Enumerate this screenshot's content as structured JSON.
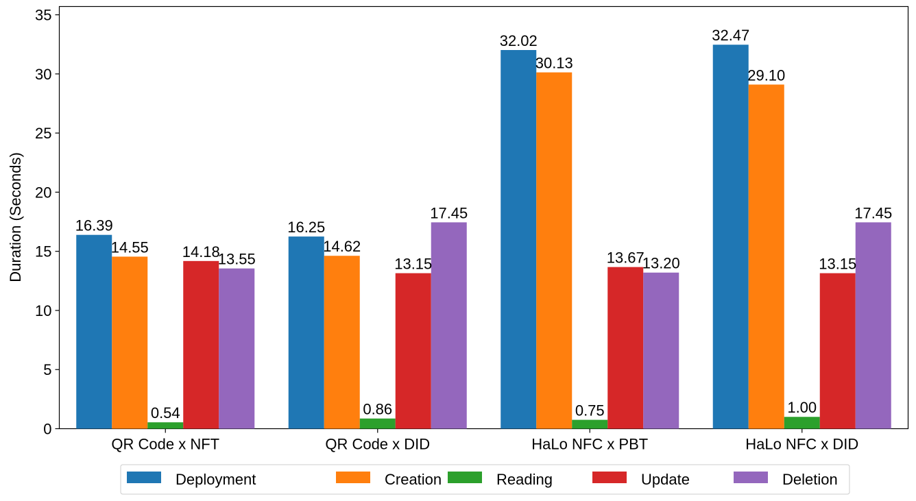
{
  "chart_data": {
    "type": "bar",
    "title": "",
    "xlabel": "",
    "ylabel": "Duration (Seconds)",
    "ylim": [
      0,
      35.7
    ],
    "yticks": [
      0,
      5,
      10,
      15,
      20,
      25,
      30,
      35
    ],
    "grid": false,
    "legend_position": "bottom-center",
    "categories": [
      "QR Code x NFT",
      "QR Code x DID",
      "HaLo NFC x PBT",
      "HaLo NFC x DID"
    ],
    "series": [
      {
        "name": "Deployment",
        "color": "#1f77b4",
        "values": [
          16.39,
          16.25,
          32.02,
          32.47
        ],
        "labels": [
          "16.39",
          "16.25",
          "32.02",
          "32.47"
        ]
      },
      {
        "name": "Creation",
        "color": "#ff7f0e",
        "values": [
          14.55,
          14.62,
          30.13,
          29.1
        ],
        "labels": [
          "14.55",
          "14.62",
          "30.13",
          "29.10"
        ]
      },
      {
        "name": "Reading",
        "color": "#2ca02c",
        "values": [
          0.54,
          0.86,
          0.75,
          1.0
        ],
        "labels": [
          "0.54",
          "0.86",
          "0.75",
          "1.00"
        ]
      },
      {
        "name": "Update",
        "color": "#d62728",
        "values": [
          14.18,
          13.15,
          13.67,
          13.15
        ],
        "labels": [
          "14.18",
          "13.15",
          "13.67",
          "13.15"
        ]
      },
      {
        "name": "Deletion",
        "color": "#9467bd",
        "values": [
          13.55,
          17.45,
          13.2,
          17.45
        ],
        "labels": [
          "13.55",
          "17.45",
          "13.20",
          "17.45"
        ]
      }
    ]
  }
}
